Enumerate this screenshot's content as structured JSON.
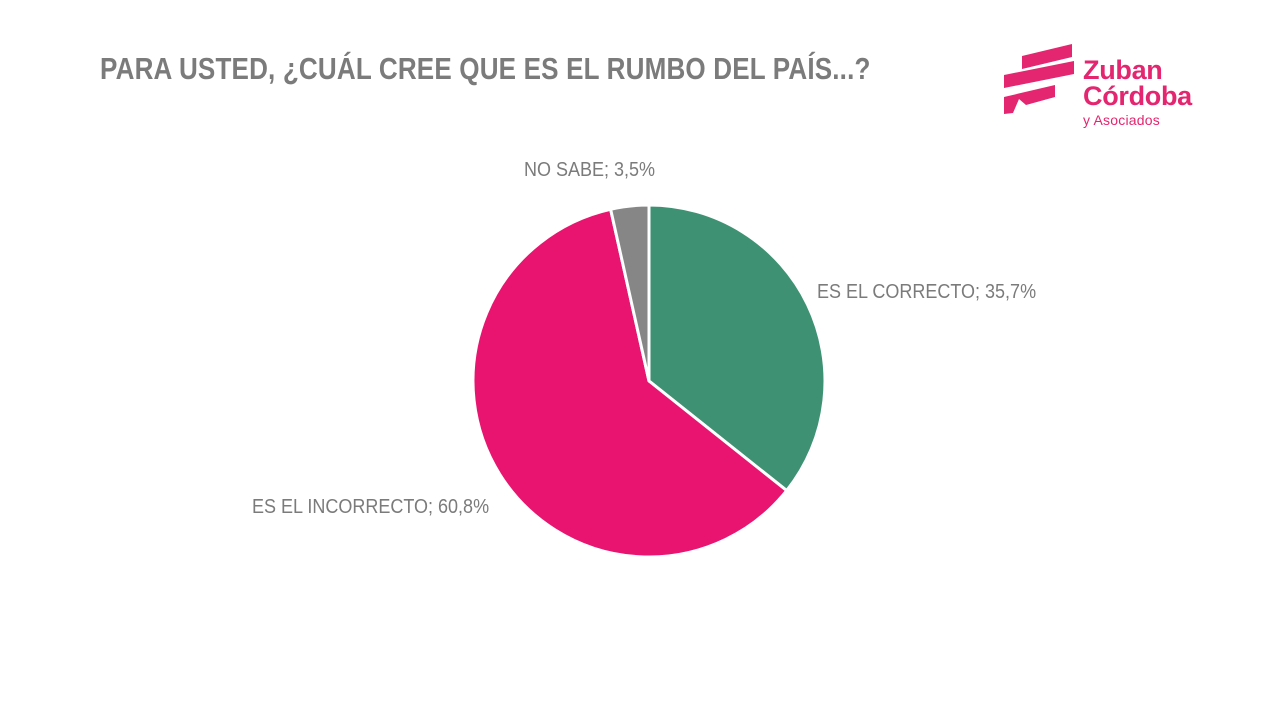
{
  "logo": {
    "name_line1": "Zuban",
    "name_line2": "Córdoba",
    "tagline": "y Asociados",
    "brand_color": "#E4256F"
  },
  "chart_data": {
    "type": "pie",
    "title": "PARA USTED, ¿CUÁL CREE QUE ES EL RUMBO DEL PAÍS...?",
    "categories": [
      "ES EL CORRECTO",
      "ES EL INCORRECTO",
      "NO SABE"
    ],
    "values": [
      35.7,
      60.8,
      3.5
    ],
    "slices": [
      {
        "label": "ES EL CORRECTO",
        "value": 35.7,
        "display": "ES EL CORRECTO; 35,7%",
        "color": "#3E9273"
      },
      {
        "label": "ES EL INCORRECTO",
        "value": 60.8,
        "display": "ES EL INCORRECTO; 60,8%",
        "color": "#E8146F"
      },
      {
        "label": "NO SABE",
        "value": 3.5,
        "display": "NO SABE; 3,5%",
        "color": "#868686"
      }
    ],
    "start_angle_deg": 0,
    "direction": "clockwise",
    "slice_border_color": "#FFFFFF",
    "legend_position": "none",
    "label_color": "#7B7B7B",
    "background": "#FFFFFF"
  }
}
